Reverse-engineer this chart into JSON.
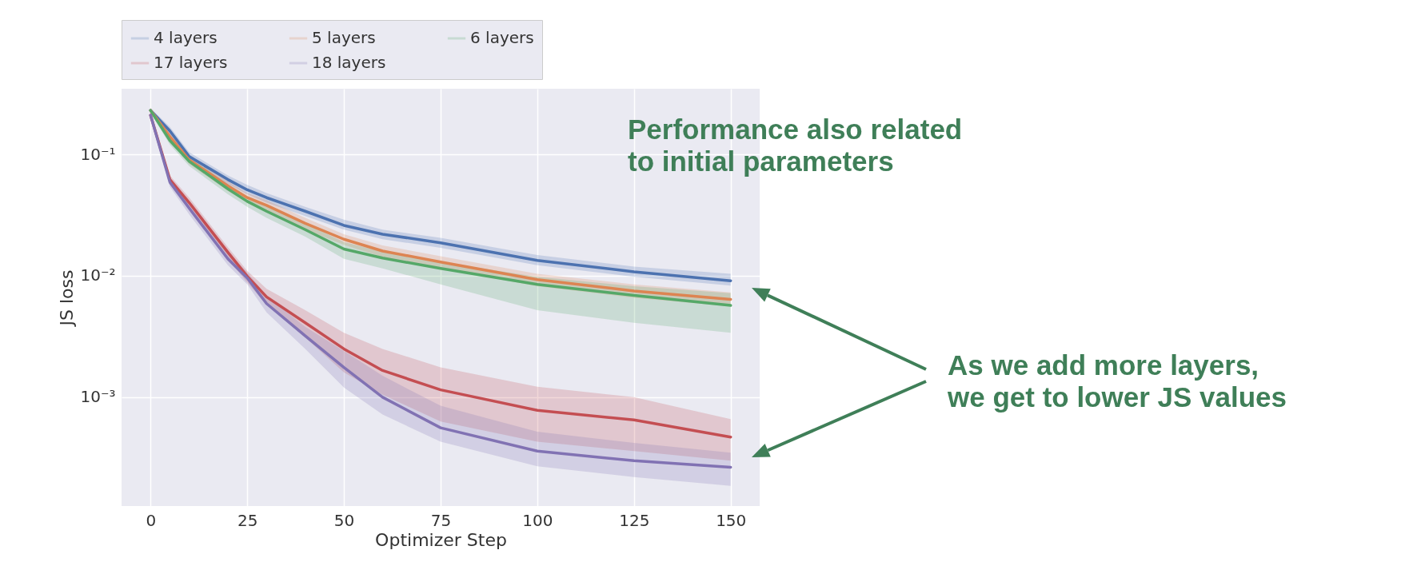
{
  "chart_data": {
    "type": "line",
    "xlabel": "Optimizer Step",
    "ylabel": "JS loss",
    "x": [
      0,
      5,
      10,
      20,
      25,
      30,
      40,
      50,
      60,
      75,
      100,
      125,
      150
    ],
    "xlim": [
      -7.5,
      157.5
    ],
    "xticks": [
      0,
      25,
      50,
      75,
      100,
      125,
      150
    ],
    "ylim": [
      0.000127,
      0.347
    ],
    "yticks": [
      {
        "value": 0.1,
        "label": "10⁻¹"
      },
      {
        "value": 0.01,
        "label": "10⁻²"
      },
      {
        "value": 0.001,
        "label": "10⁻³"
      }
    ],
    "log": true,
    "grid": true,
    "legend": "top",
    "line_style": "solid",
    "series": [
      {
        "name": "4 layers",
        "color": "#4c72b0",
        "values": [
          0.23,
          0.156,
          0.096,
          0.062,
          0.051,
          0.044,
          0.034,
          0.026,
          0.022,
          0.0187,
          0.0134,
          0.0108,
          0.0091
        ],
        "lower": [
          0.22,
          0.145,
          0.088,
          0.057,
          0.047,
          0.04,
          0.031,
          0.024,
          0.02,
          0.017,
          0.0122,
          0.0098,
          0.0083
        ],
        "upper": [
          0.24,
          0.168,
          0.104,
          0.067,
          0.056,
          0.048,
          0.037,
          0.029,
          0.024,
          0.0205,
          0.0148,
          0.0119,
          0.0104
        ]
      },
      {
        "name": "5 layers",
        "color": "#dd8452",
        "values": [
          0.23,
          0.14,
          0.09,
          0.055,
          0.044,
          0.038,
          0.027,
          0.02,
          0.016,
          0.013,
          0.0093,
          0.0075,
          0.0064
        ],
        "lower": [
          0.22,
          0.13,
          0.083,
          0.05,
          0.04,
          0.034,
          0.024,
          0.018,
          0.0143,
          0.0115,
          0.0082,
          0.0066,
          0.0056
        ],
        "upper": [
          0.24,
          0.15,
          0.097,
          0.06,
          0.048,
          0.042,
          0.03,
          0.022,
          0.0178,
          0.0145,
          0.0104,
          0.0085,
          0.0073
        ]
      },
      {
        "name": "6 layers",
        "color": "#55a868",
        "values": [
          0.23,
          0.13,
          0.0875,
          0.052,
          0.041,
          0.034,
          0.024,
          0.0166,
          0.014,
          0.0115,
          0.0085,
          0.0069,
          0.0057
        ],
        "lower": [
          0.22,
          0.12,
          0.08,
          0.047,
          0.037,
          0.03,
          0.021,
          0.0138,
          0.0115,
          0.0085,
          0.0052,
          0.0041,
          0.0034
        ],
        "upper": [
          0.24,
          0.14,
          0.095,
          0.057,
          0.045,
          0.038,
          0.027,
          0.019,
          0.0158,
          0.013,
          0.0098,
          0.0082,
          0.0072
        ]
      },
      {
        "name": "17 layers",
        "color": "#c44e52",
        "values": [
          0.21,
          0.062,
          0.04,
          0.0156,
          0.0099,
          0.0067,
          0.0041,
          0.0025,
          0.00166,
          0.00115,
          0.00078,
          0.00065,
          0.00047
        ],
        "lower": [
          0.2,
          0.057,
          0.036,
          0.0138,
          0.0088,
          0.0058,
          0.0031,
          0.0016,
          0.00105,
          0.00063,
          0.00043,
          0.00036,
          0.0003
        ],
        "upper": [
          0.22,
          0.067,
          0.044,
          0.0172,
          0.011,
          0.0078,
          0.0052,
          0.0034,
          0.0025,
          0.00176,
          0.00122,
          0.001,
          0.00066
        ]
      },
      {
        "name": "18 layers",
        "color": "#8172b3",
        "values": [
          0.21,
          0.059,
          0.036,
          0.0138,
          0.0096,
          0.0059,
          0.0032,
          0.00176,
          0.001,
          0.00056,
          0.00036,
          0.0003,
          0.000265
        ],
        "lower": [
          0.2,
          0.054,
          0.032,
          0.0122,
          0.0085,
          0.005,
          0.0025,
          0.0012,
          0.00072,
          0.00043,
          0.00027,
          0.00022,
          0.000186
        ],
        "upper": [
          0.22,
          0.064,
          0.04,
          0.0155,
          0.0107,
          0.0068,
          0.0038,
          0.0024,
          0.0015,
          0.00085,
          0.00052,
          0.00042,
          0.00035
        ]
      }
    ],
    "annotations": [
      "Performance also related\nto initial parameters",
      "As we add more layers,\nwe get to lower JS values"
    ]
  }
}
